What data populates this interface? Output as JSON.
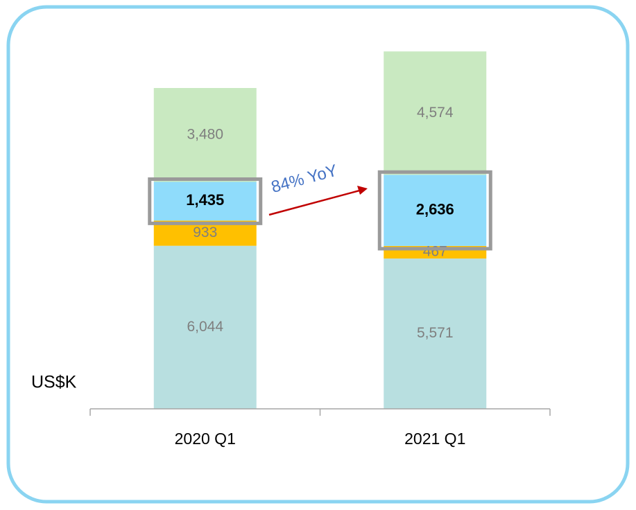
{
  "chart_data": {
    "type": "stacked_bar",
    "categories": [
      "2020 Q1",
      "2021 Q1"
    ],
    "series": [
      {
        "color": "#b8dfe0",
        "values": [
          6044,
          5571
        ],
        "value_labels": [
          "6,044",
          "5,571"
        ]
      },
      {
        "color": "#ffc000",
        "values": [
          933,
          467
        ]
      },
      {
        "color": "#8fdcfb",
        "values": [
          1435,
          2636
        ],
        "value_labels": [
          "1,435",
          "2,636"
        ],
        "highlight": true
      },
      {
        "color": "#c9e9c1",
        "values": [
          3480,
          4574
        ],
        "value_labels": [
          "3,480",
          "4,574"
        ]
      }
    ],
    "ylim": [
      0,
      15000
    ],
    "y_label": "US$K",
    "annotation": "84% YoY"
  }
}
